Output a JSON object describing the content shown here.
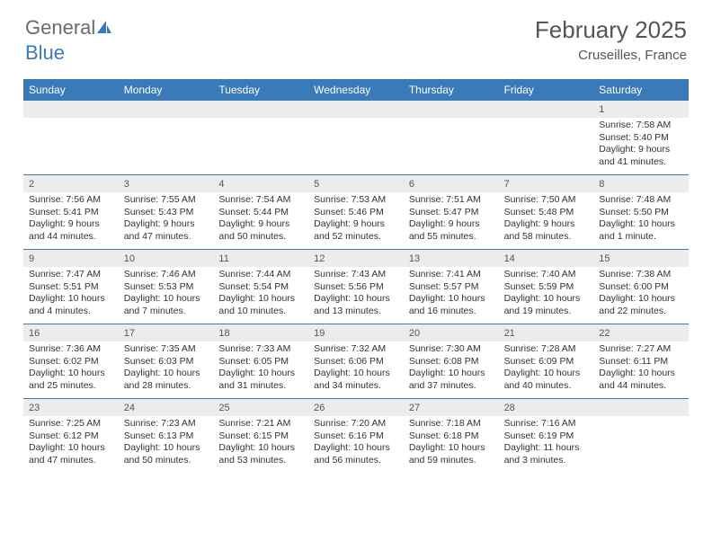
{
  "logo": {
    "text1": "General",
    "text2": "Blue"
  },
  "title": {
    "month": "February 2025",
    "location": "Cruseilles, France"
  },
  "colors": {
    "header_bg": "#3a7ab8",
    "header_text": "#ffffff",
    "daynum_bg": "#ececec",
    "rule": "#3a7ab8",
    "body_text": "#333333",
    "muted_text": "#555555"
  },
  "dow": [
    "Sunday",
    "Monday",
    "Tuesday",
    "Wednesday",
    "Thursday",
    "Friday",
    "Saturday"
  ],
  "weeks": [
    [
      {
        "n": "",
        "l": []
      },
      {
        "n": "",
        "l": []
      },
      {
        "n": "",
        "l": []
      },
      {
        "n": "",
        "l": []
      },
      {
        "n": "",
        "l": []
      },
      {
        "n": "",
        "l": []
      },
      {
        "n": "1",
        "l": [
          "Sunrise: 7:58 AM",
          "Sunset: 5:40 PM",
          "Daylight: 9 hours and 41 minutes."
        ]
      }
    ],
    [
      {
        "n": "2",
        "l": [
          "Sunrise: 7:56 AM",
          "Sunset: 5:41 PM",
          "Daylight: 9 hours and 44 minutes."
        ]
      },
      {
        "n": "3",
        "l": [
          "Sunrise: 7:55 AM",
          "Sunset: 5:43 PM",
          "Daylight: 9 hours and 47 minutes."
        ]
      },
      {
        "n": "4",
        "l": [
          "Sunrise: 7:54 AM",
          "Sunset: 5:44 PM",
          "Daylight: 9 hours and 50 minutes."
        ]
      },
      {
        "n": "5",
        "l": [
          "Sunrise: 7:53 AM",
          "Sunset: 5:46 PM",
          "Daylight: 9 hours and 52 minutes."
        ]
      },
      {
        "n": "6",
        "l": [
          "Sunrise: 7:51 AM",
          "Sunset: 5:47 PM",
          "Daylight: 9 hours and 55 minutes."
        ]
      },
      {
        "n": "7",
        "l": [
          "Sunrise: 7:50 AM",
          "Sunset: 5:48 PM",
          "Daylight: 9 hours and 58 minutes."
        ]
      },
      {
        "n": "8",
        "l": [
          "Sunrise: 7:48 AM",
          "Sunset: 5:50 PM",
          "Daylight: 10 hours and 1 minute."
        ]
      }
    ],
    [
      {
        "n": "9",
        "l": [
          "Sunrise: 7:47 AM",
          "Sunset: 5:51 PM",
          "Daylight: 10 hours and 4 minutes."
        ]
      },
      {
        "n": "10",
        "l": [
          "Sunrise: 7:46 AM",
          "Sunset: 5:53 PM",
          "Daylight: 10 hours and 7 minutes."
        ]
      },
      {
        "n": "11",
        "l": [
          "Sunrise: 7:44 AM",
          "Sunset: 5:54 PM",
          "Daylight: 10 hours and 10 minutes."
        ]
      },
      {
        "n": "12",
        "l": [
          "Sunrise: 7:43 AM",
          "Sunset: 5:56 PM",
          "Daylight: 10 hours and 13 minutes."
        ]
      },
      {
        "n": "13",
        "l": [
          "Sunrise: 7:41 AM",
          "Sunset: 5:57 PM",
          "Daylight: 10 hours and 16 minutes."
        ]
      },
      {
        "n": "14",
        "l": [
          "Sunrise: 7:40 AM",
          "Sunset: 5:59 PM",
          "Daylight: 10 hours and 19 minutes."
        ]
      },
      {
        "n": "15",
        "l": [
          "Sunrise: 7:38 AM",
          "Sunset: 6:00 PM",
          "Daylight: 10 hours and 22 minutes."
        ]
      }
    ],
    [
      {
        "n": "16",
        "l": [
          "Sunrise: 7:36 AM",
          "Sunset: 6:02 PM",
          "Daylight: 10 hours and 25 minutes."
        ]
      },
      {
        "n": "17",
        "l": [
          "Sunrise: 7:35 AM",
          "Sunset: 6:03 PM",
          "Daylight: 10 hours and 28 minutes."
        ]
      },
      {
        "n": "18",
        "l": [
          "Sunrise: 7:33 AM",
          "Sunset: 6:05 PM",
          "Daylight: 10 hours and 31 minutes."
        ]
      },
      {
        "n": "19",
        "l": [
          "Sunrise: 7:32 AM",
          "Sunset: 6:06 PM",
          "Daylight: 10 hours and 34 minutes."
        ]
      },
      {
        "n": "20",
        "l": [
          "Sunrise: 7:30 AM",
          "Sunset: 6:08 PM",
          "Daylight: 10 hours and 37 minutes."
        ]
      },
      {
        "n": "21",
        "l": [
          "Sunrise: 7:28 AM",
          "Sunset: 6:09 PM",
          "Daylight: 10 hours and 40 minutes."
        ]
      },
      {
        "n": "22",
        "l": [
          "Sunrise: 7:27 AM",
          "Sunset: 6:11 PM",
          "Daylight: 10 hours and 44 minutes."
        ]
      }
    ],
    [
      {
        "n": "23",
        "l": [
          "Sunrise: 7:25 AM",
          "Sunset: 6:12 PM",
          "Daylight: 10 hours and 47 minutes."
        ]
      },
      {
        "n": "24",
        "l": [
          "Sunrise: 7:23 AM",
          "Sunset: 6:13 PM",
          "Daylight: 10 hours and 50 minutes."
        ]
      },
      {
        "n": "25",
        "l": [
          "Sunrise: 7:21 AM",
          "Sunset: 6:15 PM",
          "Daylight: 10 hours and 53 minutes."
        ]
      },
      {
        "n": "26",
        "l": [
          "Sunrise: 7:20 AM",
          "Sunset: 6:16 PM",
          "Daylight: 10 hours and 56 minutes."
        ]
      },
      {
        "n": "27",
        "l": [
          "Sunrise: 7:18 AM",
          "Sunset: 6:18 PM",
          "Daylight: 10 hours and 59 minutes."
        ]
      },
      {
        "n": "28",
        "l": [
          "Sunrise: 7:16 AM",
          "Sunset: 6:19 PM",
          "Daylight: 11 hours and 3 minutes."
        ]
      },
      {
        "n": "",
        "l": []
      }
    ]
  ]
}
